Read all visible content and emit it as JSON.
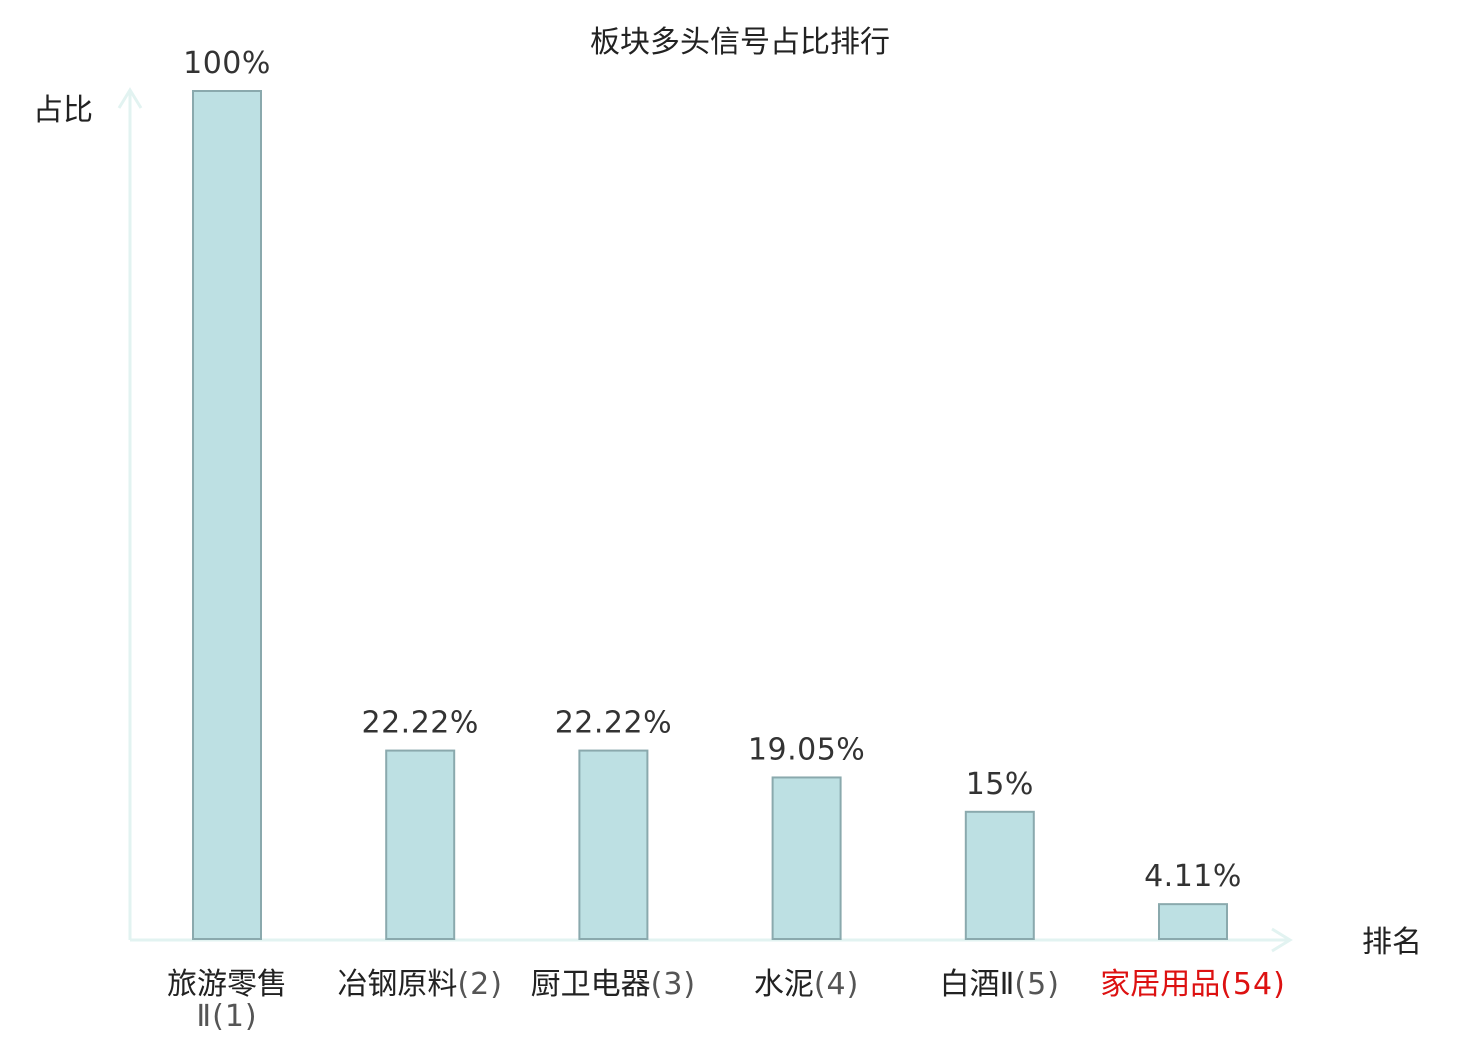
{
  "chart_data": {
    "type": "bar",
    "title": "板块多头信号占比排行",
    "ylabel": "占比",
    "xlabel": "排名",
    "ylim": [
      0,
      100
    ],
    "grid": false,
    "categories": [
      {
        "name": "旅游零售Ⅱ",
        "rank": "(1)"
      },
      {
        "name": "冶钢原料",
        "rank": "(2)"
      },
      {
        "name": "厨卫电器",
        "rank": "(3)"
      },
      {
        "name": "水泥",
        "rank": "(4)"
      },
      {
        "name": "白酒Ⅱ",
        "rank": "(5)"
      },
      {
        "name": "家居用品",
        "rank": "(54)"
      }
    ],
    "values": [
      100,
      22.22,
      22.22,
      19.05,
      15,
      4.11
    ],
    "value_labels": [
      "100%",
      "22.22%",
      "22.22%",
      "19.05%",
      "15%",
      "4.11%"
    ],
    "highlight_index": 5,
    "colors": {
      "bar_fill": "#bde0e3",
      "bar_stroke": "#8aa9ad",
      "axis": "#e2f3f1",
      "highlight_text": "#dd1111",
      "text": "#222222"
    }
  }
}
